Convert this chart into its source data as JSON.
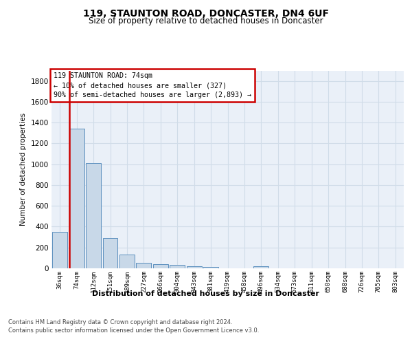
{
  "title": "119, STAUNTON ROAD, DONCASTER, DN4 6UF",
  "subtitle": "Size of property relative to detached houses in Doncaster",
  "xlabel": "Distribution of detached houses by size in Doncaster",
  "ylabel": "Number of detached properties",
  "footer_line1": "Contains HM Land Registry data © Crown copyright and database right 2024.",
  "footer_line2": "Contains public sector information licensed under the Open Government Licence v3.0.",
  "bar_color": "#c8d8e8",
  "bar_edge_color": "#5b8fbe",
  "grid_color": "#d0dce8",
  "bg_color": "#eaf0f8",
  "annotation_box_color": "#cc0000",
  "vline_color": "#cc0000",
  "categories": [
    "36sqm",
    "74sqm",
    "112sqm",
    "151sqm",
    "189sqm",
    "227sqm",
    "266sqm",
    "304sqm",
    "343sqm",
    "381sqm",
    "419sqm",
    "458sqm",
    "496sqm",
    "534sqm",
    "573sqm",
    "611sqm",
    "650sqm",
    "688sqm",
    "726sqm",
    "765sqm",
    "803sqm"
  ],
  "values": [
    350,
    1340,
    1010,
    290,
    130,
    50,
    40,
    35,
    20,
    15,
    0,
    0,
    20,
    0,
    0,
    0,
    0,
    0,
    0,
    0,
    0
  ],
  "marker_index": 1,
  "marker_label": "74sqm",
  "annotation_line1": "119 STAUNTON ROAD: 74sqm",
  "annotation_line2": "← 10% of detached houses are smaller (327)",
  "annotation_line3": "90% of semi-detached houses are larger (2,893) →",
  "ylim": [
    0,
    1900
  ],
  "yticks": [
    0,
    200,
    400,
    600,
    800,
    1000,
    1200,
    1400,
    1600,
    1800
  ]
}
